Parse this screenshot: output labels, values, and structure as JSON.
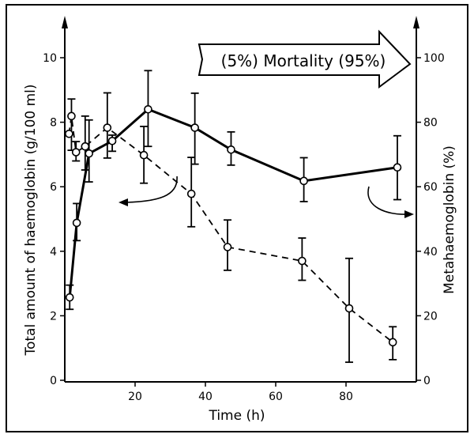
{
  "chart_data": {
    "type": "line",
    "xlabel": "Time (h)",
    "ylabel": "Total amount of haemoglobin (g/100 ml)",
    "ylabel_right": "Metahaemoglobin (%)",
    "xlim": [
      0,
      100
    ],
    "ylim": [
      0,
      10
    ],
    "ylim_right": [
      0,
      100
    ],
    "x_ticks": [
      "20",
      "40",
      "60",
      "80"
    ],
    "x_tick_values": [
      20,
      40,
      60,
      80
    ],
    "y_ticks": [
      "0",
      "2",
      "4",
      "6",
      "8",
      "10"
    ],
    "y_tick_values": [
      0,
      2,
      4,
      6,
      8,
      10
    ],
    "y_ticks_right": [
      "0",
      "20",
      "40",
      "60",
      "80",
      "100"
    ],
    "y_tick_values_right": [
      0,
      20,
      40,
      60,
      80,
      100
    ],
    "grid": false,
    "annotation": "(5%) Mortality (95%)",
    "series": [
      {
        "axis": "right",
        "style": "solid",
        "marker": "open-circle",
        "x": [
          1.4,
          3.4,
          6.9,
          13.5,
          23.7,
          37,
          47.3,
          68,
          94.6
        ],
        "y": [
          25.7,
          48.8,
          70.3,
          74.2,
          84,
          78.3,
          71.5,
          61.8,
          66
        ],
        "err_low": [
          22,
          43.3,
          61.5,
          71,
          72.5,
          67,
          66.7,
          55.4,
          56
        ],
        "err_high": [
          29.5,
          54.8,
          80.7,
          76,
          96,
          89,
          77,
          69,
          75.8
        ]
      },
      {
        "axis": "left",
        "style": "dashed",
        "marker": "open-circle",
        "x": [
          1.2,
          1.9,
          3.2,
          5.8,
          12.1,
          22.5,
          36,
          46.3,
          67.5,
          80.9,
          93.3
        ],
        "y": [
          7.64,
          8.19,
          7.07,
          7.25,
          7.83,
          6.98,
          5.78,
          4.13,
          3.7,
          2.23,
          1.18
        ],
        "err_low": [
          null,
          7.13,
          6.8,
          6.52,
          6.89,
          6.11,
          4.76,
          3.41,
          3.1,
          0.56,
          0.64
        ],
        "err_high": [
          null,
          8.72,
          7.4,
          8.19,
          8.91,
          7.87,
          6.91,
          4.97,
          4.41,
          3.78,
          1.66
        ]
      }
    ]
  }
}
